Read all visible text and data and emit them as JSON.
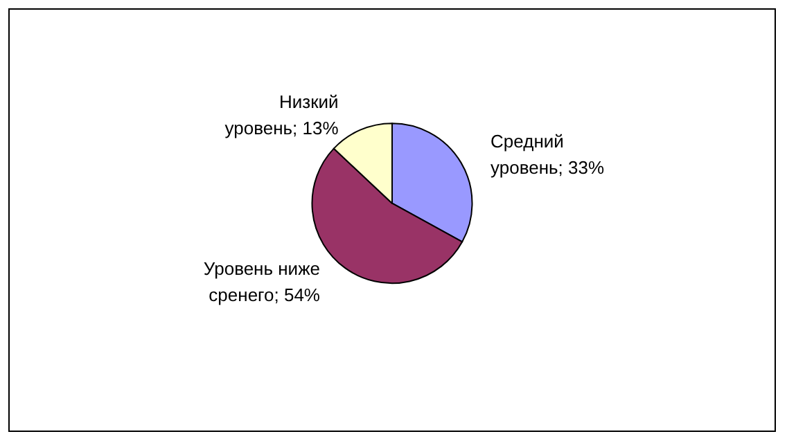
{
  "chart_data": {
    "type": "pie",
    "categories": [
      "Средний уровень",
      "Уровень ниже сренего",
      "Низкий уровень"
    ],
    "values": [
      33,
      54,
      13
    ],
    "value_labels": [
      "33%",
      "54%",
      "13%"
    ],
    "colors": [
      "#9999ff",
      "#993366",
      "#ffffcc"
    ],
    "legend": false
  }
}
